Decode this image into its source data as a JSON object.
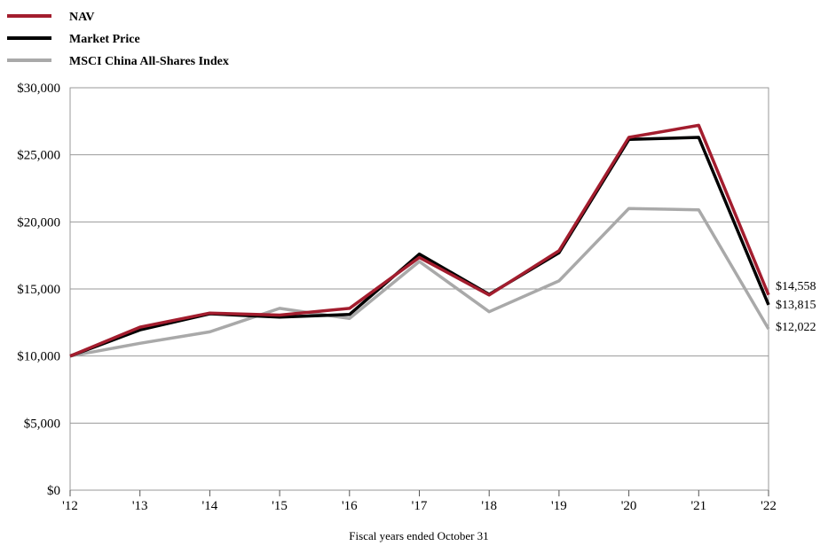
{
  "chart_data": {
    "type": "line",
    "title": "",
    "xlabel": "Fiscal years ended October 31",
    "ylabel": "",
    "categories": [
      "'12",
      "'13",
      "'14",
      "'15",
      "'16",
      "'17",
      "'18",
      "'19",
      "'20",
      "'21",
      "'22"
    ],
    "y_tick_labels": [
      "$0",
      "$5,000",
      "$10,000",
      "$15,000",
      "$20,000",
      "$25,000",
      "$30,000"
    ],
    "y_ticks": [
      0,
      5000,
      10000,
      15000,
      20000,
      25000,
      30000
    ],
    "ylim": [
      0,
      30000
    ],
    "grid": "horizontal",
    "legend_position": "top-left",
    "series": [
      {
        "name": "NAV",
        "color": "#a31d2e",
        "values": [
          10000,
          12150,
          13200,
          13050,
          13550,
          17350,
          14550,
          17850,
          26300,
          27200,
          14558
        ]
      },
      {
        "name": "Market Price",
        "color": "#000000",
        "values": [
          10000,
          11950,
          13150,
          12900,
          13100,
          17600,
          14600,
          17700,
          26150,
          26300,
          13815
        ]
      },
      {
        "name": "MSCI China All-Shares Index",
        "color": "#a9a9a9",
        "values": [
          10000,
          10950,
          11800,
          13550,
          12800,
          17050,
          13300,
          15600,
          21000,
          20900,
          12022
        ]
      }
    ],
    "end_labels": [
      "$14,558",
      "$13,815",
      "$12,022"
    ]
  }
}
